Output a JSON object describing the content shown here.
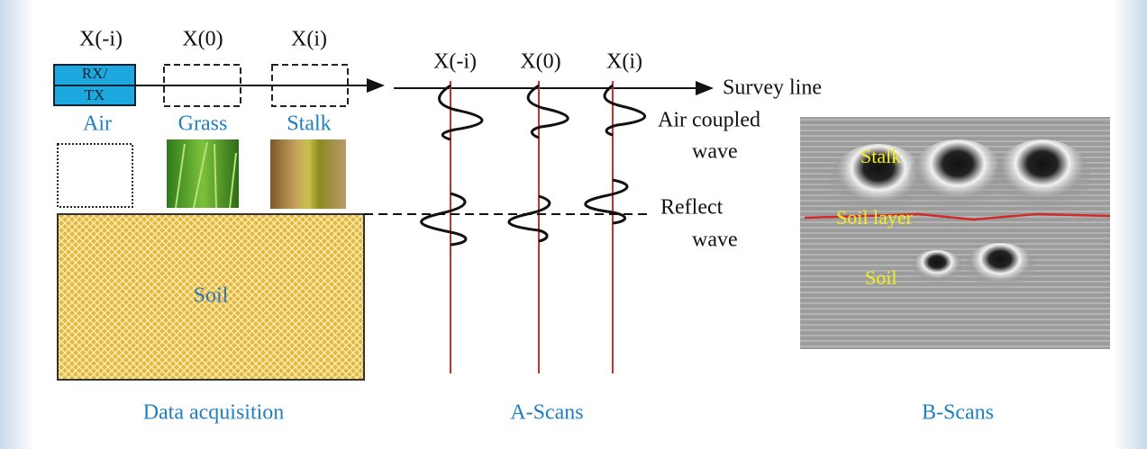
{
  "acquisition": {
    "positions": [
      "X(-i)",
      "X(0)",
      "X(i)"
    ],
    "antenna": [
      "RX/",
      "TX"
    ],
    "media": [
      "Air",
      "Grass",
      "Stalk"
    ],
    "ground": "Soil",
    "caption": "Data acquisition"
  },
  "a_scans": {
    "positions": [
      "X(-i)",
      "X(0)",
      "X(i)"
    ],
    "survey_line": "Survey line",
    "air_wave": [
      "Air coupled",
      "wave"
    ],
    "reflect_wave": [
      "Reflect",
      "wave"
    ],
    "caption": "A-Scans"
  },
  "b_scans": {
    "labels": [
      "Stalk",
      "Soil layer",
      "Soil"
    ],
    "caption": "B-Scans"
  }
}
